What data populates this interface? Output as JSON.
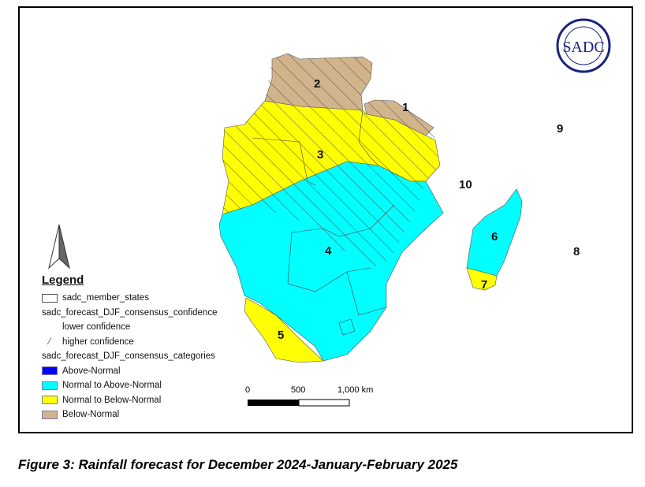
{
  "map": {
    "region_labels": [
      "1",
      "2",
      "3",
      "4",
      "5",
      "6",
      "7",
      "8",
      "9",
      "10"
    ],
    "colors": {
      "above_normal": "#0000ff",
      "normal_to_above": "#00ffff",
      "normal_to_below": "#ffff00",
      "below_normal": "#d2b48c"
    }
  },
  "logo": {
    "text": "SADC"
  },
  "legend": {
    "title": "Legend",
    "member_states": "sadc_member_states",
    "confidence_title": "sadc_forecast_DJF_consensus_confidence",
    "lower": "lower confidence",
    "higher": "higher confidence",
    "categories_title": "sadc_forecast_DJF_consensus_categories",
    "categories": [
      "Above-Normal",
      "Normal to Above-Normal",
      "Normal to Below-Normal",
      "Below-Normal"
    ]
  },
  "scale_bar": {
    "labels": [
      "0",
      "500",
      "1,000 km"
    ]
  },
  "caption": "Figure 3: Rainfall forecast for December 2024-January-February 2025"
}
